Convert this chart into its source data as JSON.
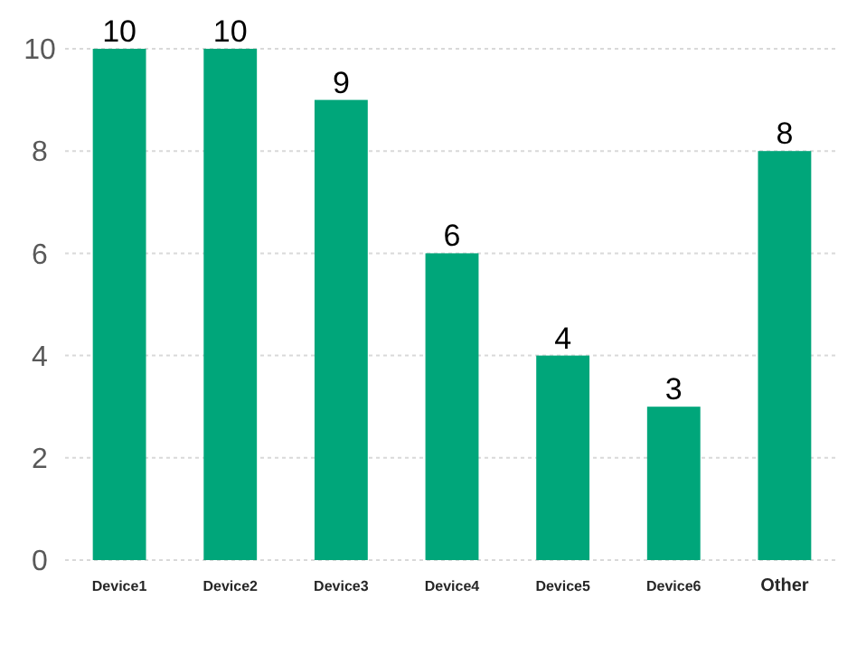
{
  "chart_data": {
    "type": "bar",
    "categories": [
      "Device1",
      "Device2",
      "Device3",
      "Device4",
      "Device5",
      "Device6",
      "Other"
    ],
    "values": [
      10,
      10,
      9,
      6,
      4,
      3,
      8
    ],
    "color": "#00a67a",
    "ylim": [
      0,
      10
    ],
    "yticks": [
      0,
      2,
      4,
      6,
      8,
      10
    ],
    "grid": "y",
    "data_labels": true
  }
}
